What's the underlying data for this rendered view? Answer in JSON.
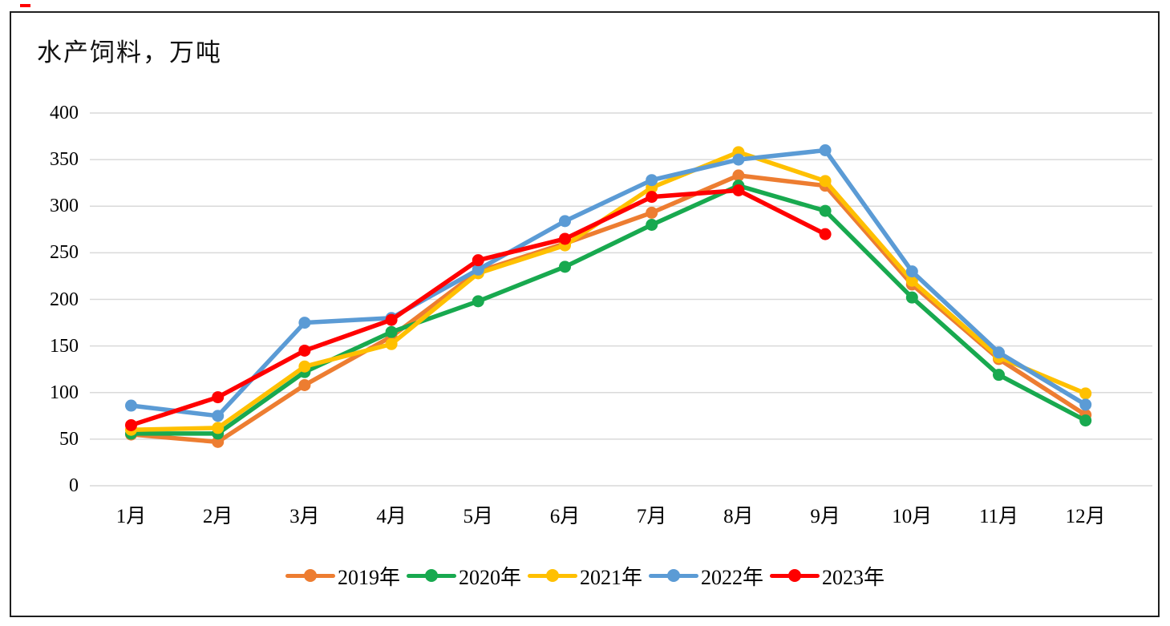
{
  "chart_data": {
    "type": "line",
    "title": "水产饲料，万吨",
    "xlabel": "",
    "ylabel": "",
    "categories": [
      "1月",
      "2月",
      "3月",
      "4月",
      "5月",
      "6月",
      "7月",
      "8月",
      "9月",
      "10月",
      "11月",
      "12月"
    ],
    "ylim": [
      0,
      400
    ],
    "yticks": [
      0,
      50,
      100,
      150,
      200,
      250,
      300,
      350,
      400
    ],
    "grid": true,
    "gridline_color": "#D9D9D9",
    "background": "#FFFFFF",
    "frame_border_color": "#1F1F1F",
    "legend_position": "bottom",
    "series": [
      {
        "name": "2019年",
        "color": "#ED7D31",
        "values": [
          55,
          47,
          108,
          160,
          230,
          260,
          293,
          333,
          322,
          216,
          136,
          76
        ]
      },
      {
        "name": "2020年",
        "color": "#18A94F",
        "values": [
          56,
          56,
          122,
          165,
          198,
          235,
          280,
          322,
          295,
          202,
          119,
          70
        ]
      },
      {
        "name": "2021年",
        "color": "#FFC000",
        "values": [
          60,
          62,
          128,
          152,
          228,
          258,
          320,
          358,
          327,
          220,
          138,
          99
        ]
      },
      {
        "name": "2022年",
        "color": "#5B9BD5",
        "values": [
          86,
          75,
          175,
          180,
          232,
          284,
          328,
          350,
          360,
          230,
          143,
          87
        ]
      },
      {
        "name": "2023年",
        "color": "#FF0000",
        "values": [
          65,
          95,
          145,
          178,
          242,
          265,
          310,
          317,
          270
        ]
      }
    ]
  }
}
